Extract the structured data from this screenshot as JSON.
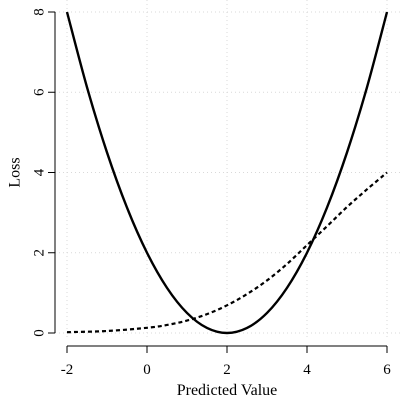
{
  "chart_data": {
    "type": "line",
    "xlabel": "Predicted Value",
    "ylabel": "Loss",
    "xlim": [
      -2,
      6
    ],
    "ylim": [
      0,
      8
    ],
    "x_ticks": [
      -2,
      0,
      2,
      4,
      6
    ],
    "y_ticks": [
      0,
      2,
      4,
      6,
      8
    ],
    "x_tick_labels": [
      "-2",
      "0",
      "2",
      "4",
      "6"
    ],
    "y_tick_labels": [
      "0",
      "2",
      "4",
      "6",
      "8"
    ],
    "grid": true,
    "series": [
      {
        "line_style": "solid",
        "color": "#000000",
        "x": [
          -2,
          -1.5,
          -1,
          -0.5,
          0,
          0.5,
          1,
          1.5,
          2,
          2.5,
          3,
          3.5,
          4,
          4.5,
          5,
          5.5,
          6
        ],
        "y": [
          8,
          6.125,
          4.5,
          3.125,
          2,
          1.125,
          0.5,
          0.125,
          0,
          0.125,
          0.5,
          1.125,
          2,
          3.125,
          4.5,
          6.125,
          8
        ]
      },
      {
        "line_style": "dotted",
        "color": "#000000",
        "x": [
          -2,
          -1,
          0,
          0.5,
          1,
          1.5,
          2,
          2.5,
          3,
          3.5,
          4,
          4.5,
          5,
          5.5,
          6
        ],
        "y": [
          0.02,
          0.05,
          0.13,
          0.2,
          0.31,
          0.47,
          0.69,
          0.97,
          1.31,
          1.72,
          2.19,
          2.66,
          3.14,
          3.58,
          4.0
        ]
      }
    ]
  }
}
